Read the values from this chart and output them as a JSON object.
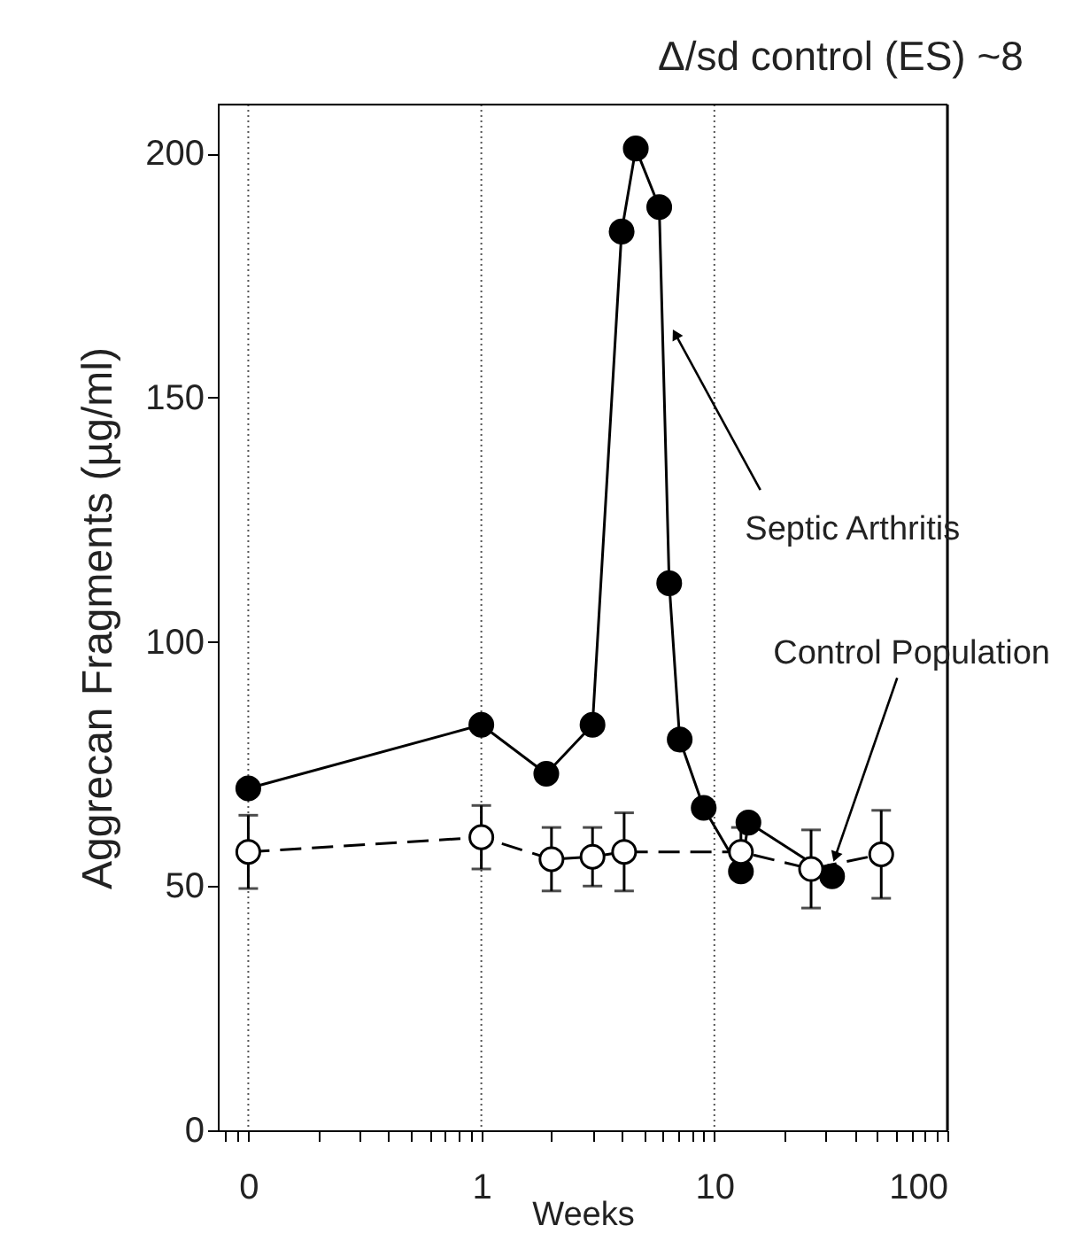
{
  "chart_data": {
    "type": "line",
    "title": "Δ/sd control (ES) ~8",
    "xlabel": "Weeks",
    "ylabel": "Aggrecan Fragments (µg/ml)",
    "log": "x",
    "xlim": [
      0.074,
      100
    ],
    "ylim": [
      0,
      210
    ],
    "xticks": [
      {
        "value": 0.1,
        "label": "0"
      },
      1,
      10,
      100,
      {
        "value": 0.08,
        "label": null
      },
      {
        "value": 0.09,
        "label": null
      },
      {
        "value": 0.2,
        "label": null
      },
      {
        "value": 0.3,
        "label": null
      },
      {
        "value": 0.4,
        "label": null
      },
      {
        "value": 0.5,
        "label": null
      },
      {
        "value": 0.6,
        "label": null
      },
      {
        "value": 0.7,
        "label": null
      },
      {
        "value": 0.8,
        "label": null
      },
      {
        "value": 0.9,
        "label": null
      },
      {
        "value": 2,
        "label": null
      },
      {
        "value": 3,
        "label": null
      },
      {
        "value": 4,
        "label": null
      },
      {
        "value": 5,
        "label": null
      },
      {
        "value": 6,
        "label": null
      },
      {
        "value": 7,
        "label": null
      },
      {
        "value": 8,
        "label": null
      },
      {
        "value": 9,
        "label": null
      },
      {
        "value": 20,
        "label": null
      },
      {
        "value": 30,
        "label": null
      },
      {
        "value": 40,
        "label": null
      },
      {
        "value": 50,
        "label": null
      },
      {
        "value": 60,
        "label": null
      },
      {
        "value": 70,
        "label": null
      },
      {
        "value": 80,
        "label": null
      },
      {
        "value": 90,
        "label": null
      }
    ],
    "yticks": [
      0,
      50,
      100,
      150,
      200
    ],
    "grid": "x",
    "marker": "circle",
    "series": [
      {
        "color": "#000000",
        "line_style": "solid",
        "x": [
          0.1,
          1,
          1.9,
          3,
          4,
          4.6,
          5.8,
          6.4,
          7.1,
          9,
          13,
          14,
          32
        ],
        "values": [
          70,
          83,
          73,
          83,
          184,
          201,
          189,
          112,
          80,
          66,
          53,
          63,
          52
        ]
      },
      {
        "color": "#000000",
        "line_style": "dashed",
        "x": [
          0.1,
          1,
          2,
          3,
          4.1,
          13,
          26,
          52
        ],
        "values": [
          57,
          60,
          55.5,
          56,
          57,
          57,
          53.5,
          56.5
        ],
        "errors": [
          7.5,
          6.5,
          6.5,
          6,
          8,
          5,
          8,
          9
        ]
      }
    ],
    "annotations": [
      {
        "text": "Septic Arthritis",
        "x": 6.8,
        "y": 163
      },
      {
        "text": "Control Population",
        "x": 33,
        "y": 56
      }
    ]
  }
}
